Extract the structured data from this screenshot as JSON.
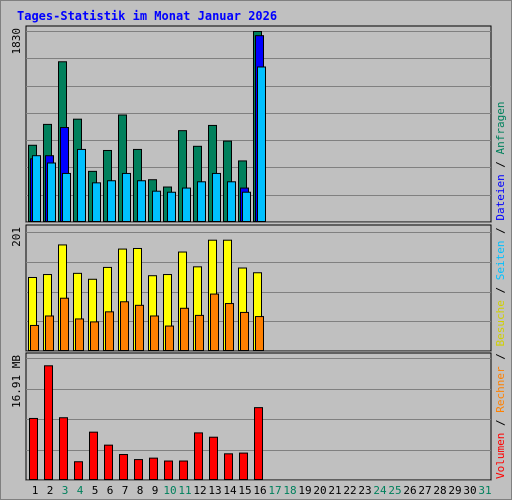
{
  "chart_data": {
    "type": "bar",
    "title": "Tages-Statistik im Monat Januar 2026",
    "days": [
      "1",
      "2",
      "3",
      "4",
      "5",
      "6",
      "7",
      "8",
      "9",
      "10",
      "11",
      "12",
      "13",
      "14",
      "15",
      "16",
      "17",
      "18",
      "19",
      "20",
      "21",
      "22",
      "23",
      "24",
      "25",
      "26",
      "27",
      "28",
      "29",
      "30",
      "31"
    ],
    "weekend_days": [
      "3",
      "4",
      "10",
      "11",
      "17",
      "18",
      "24",
      "25",
      "31"
    ],
    "panels": [
      {
        "id": "requests",
        "ymax_label": "1830",
        "ylim": [
          0,
          1830
        ],
        "series": [
          {
            "name": "Anfragen",
            "color": "#00805c",
            "values": [
              740,
              940,
              1540,
              990,
              490,
              690,
              1030,
              700,
              410,
              340,
              880,
              730,
              930,
              780,
              590,
              1830
            ]
          },
          {
            "name": "Dateien",
            "color": "#0000ff",
            "values": [
              610,
              640,
              910,
              0,
              0,
              0,
              0,
              0,
              0,
              0,
              0,
              0,
              0,
              0,
              330,
              1790
            ]
          },
          {
            "name": "Seiten",
            "color": "#00c0ff",
            "values": [
              640,
              570,
              470,
              700,
              380,
              400,
              470,
              400,
              300,
              290,
              330,
              390,
              470,
              390,
              290,
              1490
            ]
          }
        ]
      },
      {
        "id": "visits",
        "ymax_label": "201",
        "ylim": [
          0,
          201
        ],
        "series": [
          {
            "name": "Besuche",
            "color": "#ffff00",
            "values": [
              125,
              130,
              180,
              132,
              122,
              142,
              173,
              174,
              128,
              130,
              168,
              143,
              188,
              188,
              141,
              133
            ]
          },
          {
            "name": "Rechner",
            "color": "#ff8000",
            "values": [
              44,
              60,
              90,
              55,
              50,
              67,
              84,
              78,
              60,
              43,
              73,
              61,
              97,
              81,
              66,
              59
            ]
          }
        ]
      },
      {
        "id": "volume",
        "ymax_label": "16.91 MB",
        "ylim": [
          0,
          16.91
        ],
        "series": [
          {
            "name": "Volumen",
            "color": "#ff0000",
            "values": [
              8.6,
              15.9,
              8.7,
              2.6,
              6.7,
              4.9,
              3.6,
              2.9,
              3.1,
              2.7,
              2.7,
              6.6,
              6.0,
              3.7,
              3.8,
              10.1
            ]
          }
        ]
      }
    ],
    "right_legend": [
      {
        "text": "Volumen",
        "color": "#ff0000"
      },
      {
        "text": " / ",
        "color": "#000000"
      },
      {
        "text": "Rechner",
        "color": "#ff8000"
      },
      {
        "text": " / ",
        "color": "#000000"
      },
      {
        "text": "Besuche",
        "color": "#d0d000"
      },
      {
        "text": " / ",
        "color": "#000000"
      },
      {
        "text": "Seiten",
        "color": "#00c0ff"
      },
      {
        "text": " / ",
        "color": "#000000"
      },
      {
        "text": "Dateien",
        "color": "#0000ff"
      },
      {
        "text": " / ",
        "color": "#000000"
      },
      {
        "text": "Anfragen",
        "color": "#00805c"
      }
    ],
    "colors": {
      "title": "#0000ff",
      "background": "#c0c0c0",
      "plot": "#c0c0c0",
      "grid": "#808080",
      "weekday_label": "#000000",
      "weekend_label": "#00805c"
    }
  }
}
